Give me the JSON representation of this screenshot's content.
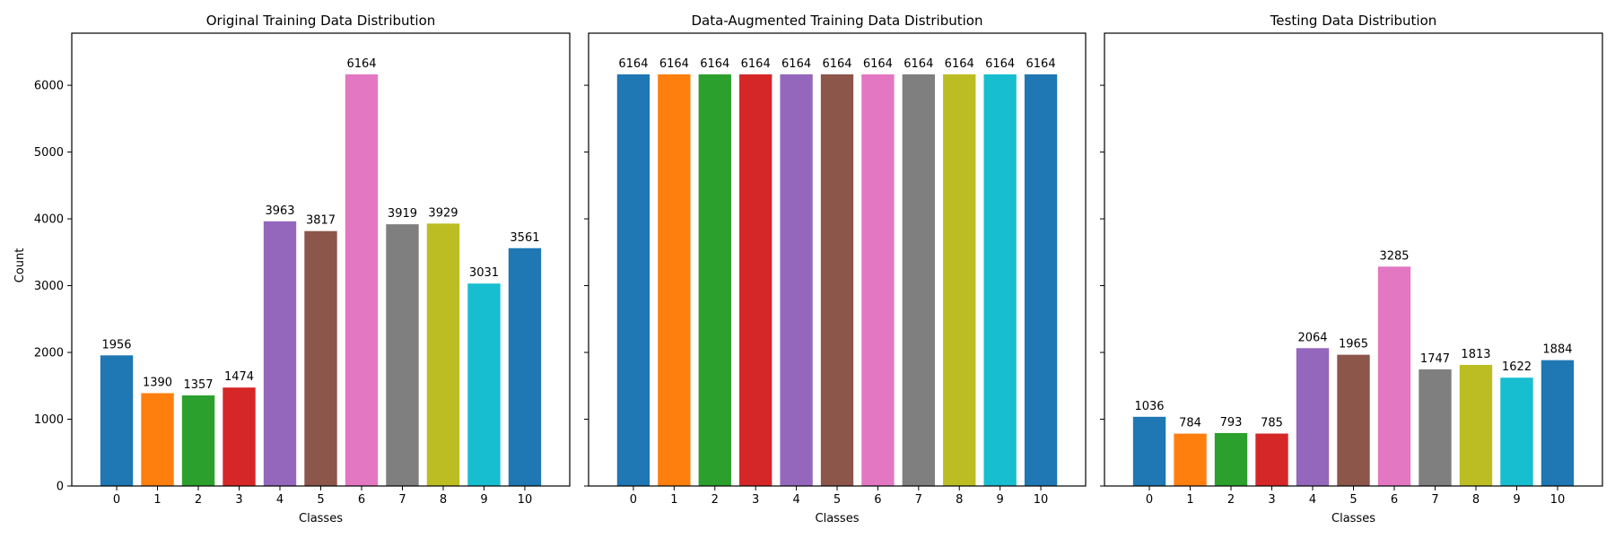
{
  "figure": {
    "shared_ylabel": "Count",
    "x_tick_color": "#000000",
    "axis_color": "#000000",
    "bar_colors": [
      "#1f77b4",
      "#ff7f0e",
      "#2ca02c",
      "#d62728",
      "#9467bd",
      "#8c564b",
      "#e377c2",
      "#7f7f7f",
      "#bcbd22",
      "#17becf",
      "#1f77b4"
    ]
  },
  "chart_data": [
    {
      "type": "bar",
      "title": "Original Training Data Distribution",
      "xlabel": "Classes",
      "ylabel": "Count",
      "categories": [
        "0",
        "1",
        "2",
        "3",
        "4",
        "5",
        "6",
        "7",
        "8",
        "9",
        "10"
      ],
      "values": [
        1956,
        1390,
        1357,
        1474,
        3963,
        3817,
        6164,
        3919,
        3929,
        3031,
        3561
      ],
      "ylim": [
        0,
        6780
      ],
      "yticks": [
        0,
        1000,
        2000,
        3000,
        4000,
        5000,
        6000
      ],
      "show_ytick_labels": true,
      "grid": false,
      "legend": "none"
    },
    {
      "type": "bar",
      "title": "Data-Augmented Training Data Distribution",
      "xlabel": "Classes",
      "ylabel": "",
      "categories": [
        "0",
        "1",
        "2",
        "3",
        "4",
        "5",
        "6",
        "7",
        "8",
        "9",
        "10"
      ],
      "values": [
        6164,
        6164,
        6164,
        6164,
        6164,
        6164,
        6164,
        6164,
        6164,
        6164,
        6164
      ],
      "ylim": [
        0,
        6780
      ],
      "yticks": [
        0,
        1000,
        2000,
        3000,
        4000,
        5000,
        6000
      ],
      "show_ytick_labels": false,
      "grid": false,
      "legend": "none"
    },
    {
      "type": "bar",
      "title": "Testing Data Distribution",
      "xlabel": "Classes",
      "ylabel": "",
      "categories": [
        "0",
        "1",
        "2",
        "3",
        "4",
        "5",
        "6",
        "7",
        "8",
        "9",
        "10"
      ],
      "values": [
        1036,
        784,
        793,
        785,
        2064,
        1965,
        3285,
        1747,
        1813,
        1622,
        1884
      ],
      "ylim": [
        0,
        6780
      ],
      "yticks": [
        0,
        1000,
        2000,
        3000,
        4000,
        5000,
        6000
      ],
      "show_ytick_labels": false,
      "grid": false,
      "legend": "none"
    }
  ]
}
